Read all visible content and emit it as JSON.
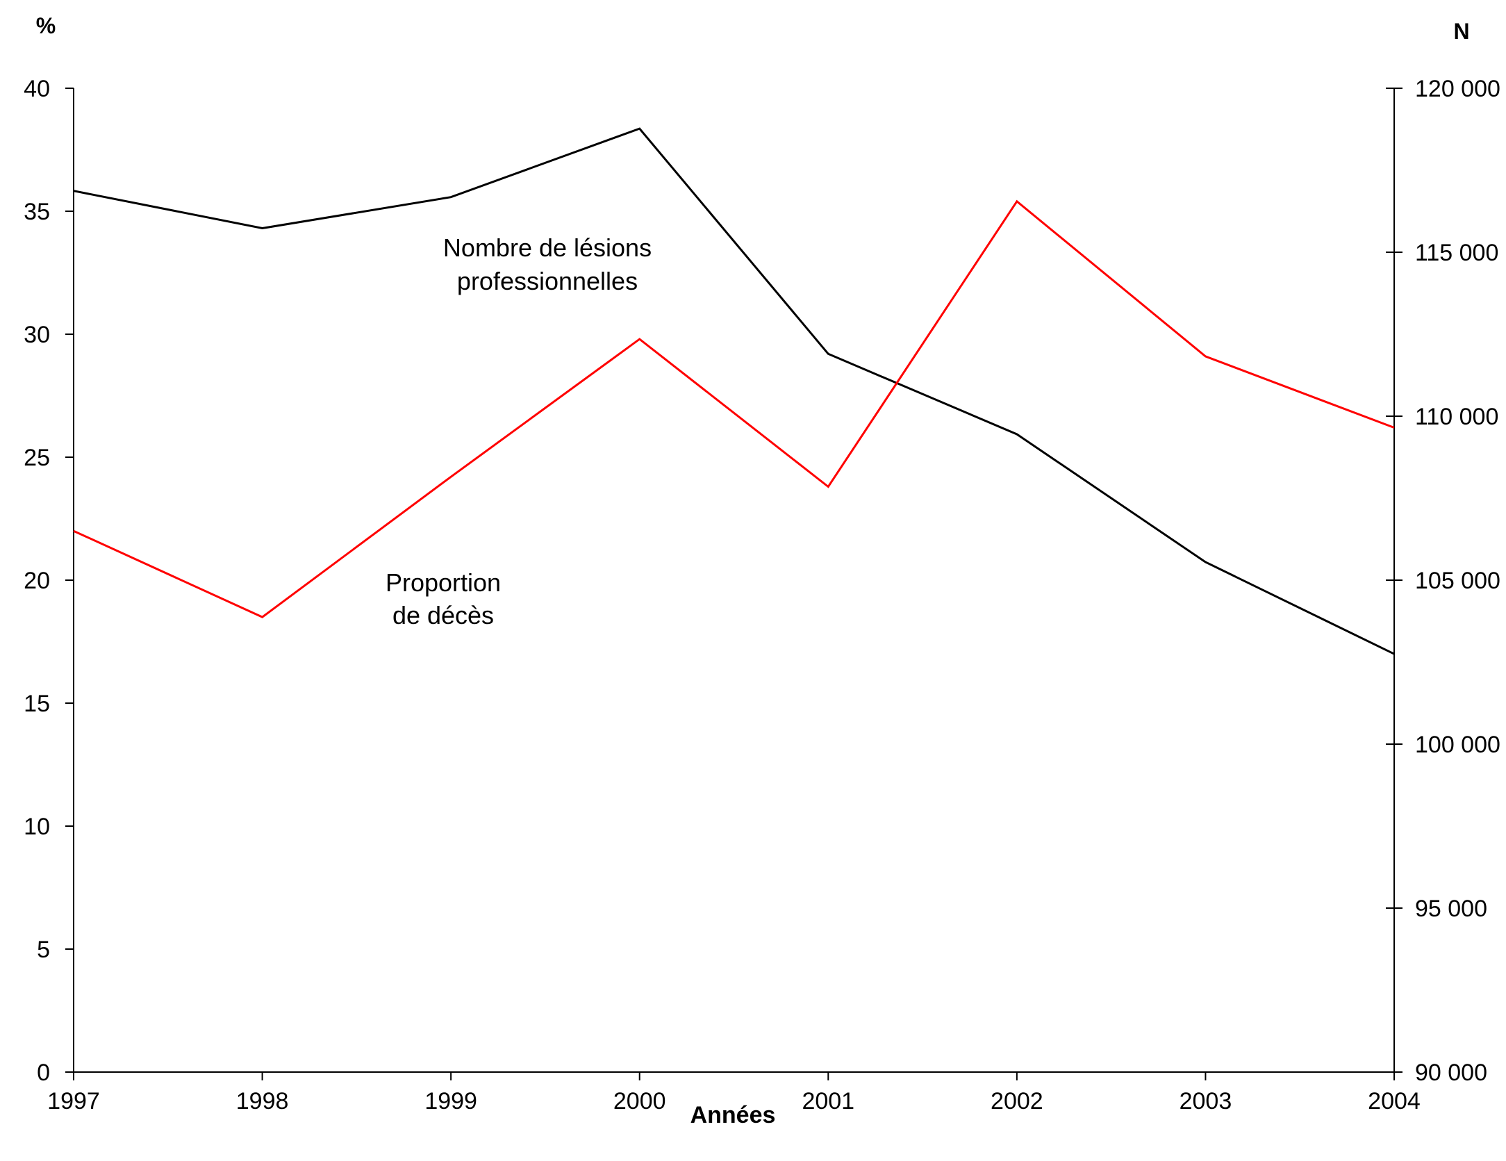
{
  "chart_data": {
    "type": "line",
    "title": "",
    "x": [
      1997,
      1998,
      1999,
      2000,
      2001,
      2002,
      2003,
      2004
    ],
    "xlabel": "Années",
    "y_left_unit": "%",
    "y_right_unit": "N",
    "y_left_lim": [
      0,
      40
    ],
    "y_right_lim": [
      90000,
      120000
    ],
    "y_left_ticks": [
      0,
      5,
      10,
      15,
      20,
      25,
      30,
      35,
      40
    ],
    "y_left_tick_labels": [
      "0",
      "5",
      "10",
      "15",
      "20",
      "25",
      "30",
      "35",
      "40"
    ],
    "y_right_ticks": [
      90000,
      95000,
      100000,
      105000,
      110000,
      115000,
      120000
    ],
    "y_right_tick_labels": [
      "90 000",
      "95 000",
      "100 000",
      "105 000",
      "110 000",
      "115 000",
      "120 000"
    ],
    "x_tick_labels": [
      "1997",
      "1998",
      "1999",
      "2000",
      "2001",
      "2002",
      "2003",
      "2004"
    ],
    "grid": false,
    "series": [
      {
        "axis": "right",
        "color": "#000000",
        "values": [
          116870,
          115730,
          116680,
          118770,
          111900,
          109450,
          105550,
          102750
        ]
      },
      {
        "axis": "left",
        "color": "#ff0000",
        "values": [
          22.0,
          18.5,
          24.2,
          29.8,
          23.8,
          35.4,
          29.1,
          26.2
        ]
      }
    ],
    "annotations": [
      {
        "lines": [
          "Nombre de lésions",
          "professionnelles"
        ]
      },
      {
        "lines": [
          "Proportion",
          "de décès"
        ]
      }
    ]
  }
}
